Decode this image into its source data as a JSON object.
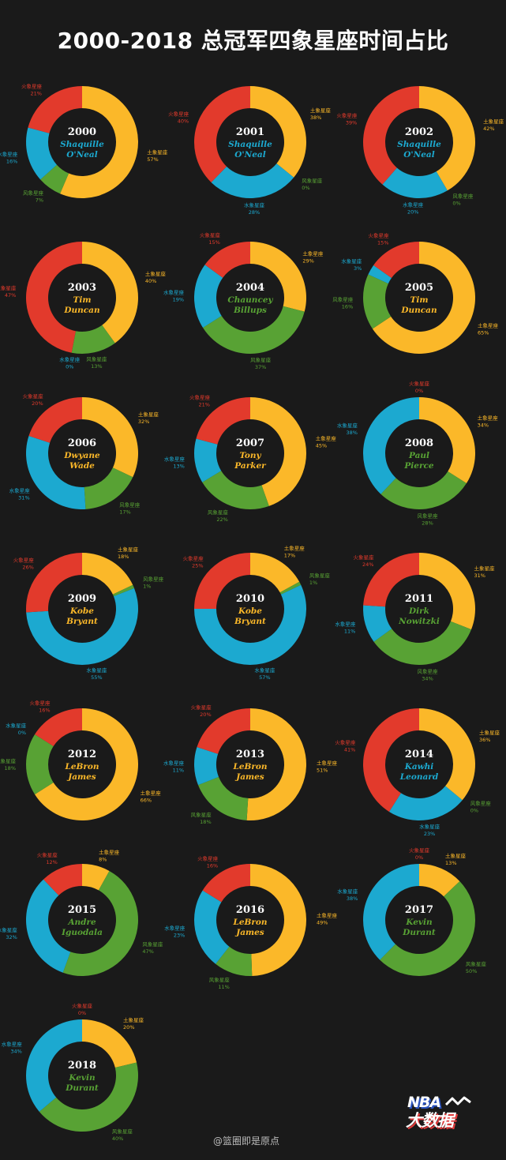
{
  "title": "2000-2018 总冠军四象星座时间占比",
  "colors": {
    "earth": "#fbb829",
    "air": "#58a234",
    "water": "#1ca9d0",
    "fire": "#e23a2c"
  },
  "element_labels": {
    "earth": "土象星座",
    "air": "风象星座",
    "water": "水象星座",
    "fire": "火象星座"
  },
  "chart_data": [
    {
      "type": "pie",
      "year": "2000",
      "player": [
        "Shaquille",
        "O'Neal"
      ],
      "name_color": "water",
      "slices": [
        {
          "element": "earth",
          "value": 57
        },
        {
          "element": "air",
          "value": 7
        },
        {
          "element": "water",
          "value": 16
        },
        {
          "element": "fire",
          "value": 21
        }
      ]
    },
    {
      "type": "pie",
      "year": "2001",
      "player": [
        "Shaquille",
        "O'Neal"
      ],
      "name_color": "water",
      "slices": [
        {
          "element": "earth",
          "value": 38
        },
        {
          "element": "air",
          "value": 0
        },
        {
          "element": "water",
          "value": 28
        },
        {
          "element": "fire",
          "value": 40
        }
      ]
    },
    {
      "type": "pie",
      "year": "2002",
      "player": [
        "Shaquille",
        "O'Neal"
      ],
      "name_color": "water",
      "slices": [
        {
          "element": "earth",
          "value": 42
        },
        {
          "element": "air",
          "value": 0
        },
        {
          "element": "water",
          "value": 20
        },
        {
          "element": "fire",
          "value": 39
        }
      ]
    },
    {
      "type": "pie",
      "year": "2003",
      "player": [
        "Tim",
        "Duncan"
      ],
      "name_color": "earth",
      "slices": [
        {
          "element": "earth",
          "value": 40
        },
        {
          "element": "air",
          "value": 13
        },
        {
          "element": "water",
          "value": 0
        },
        {
          "element": "fire",
          "value": 47
        }
      ]
    },
    {
      "type": "pie",
      "year": "2004",
      "player": [
        "Chauncey",
        "Billups"
      ],
      "name_color": "air",
      "slices": [
        {
          "element": "earth",
          "value": 29
        },
        {
          "element": "air",
          "value": 37
        },
        {
          "element": "water",
          "value": 19
        },
        {
          "element": "fire",
          "value": 15
        }
      ]
    },
    {
      "type": "pie",
      "year": "2005",
      "player": [
        "Tim",
        "Duncan"
      ],
      "name_color": "earth",
      "slices": [
        {
          "element": "earth",
          "value": 65
        },
        {
          "element": "air",
          "value": 16
        },
        {
          "element": "water",
          "value": 3
        },
        {
          "element": "fire",
          "value": 15
        }
      ]
    },
    {
      "type": "pie",
      "year": "2006",
      "player": [
        "Dwyane",
        "Wade"
      ],
      "name_color": "earth",
      "slices": [
        {
          "element": "earth",
          "value": 32
        },
        {
          "element": "air",
          "value": 17
        },
        {
          "element": "water",
          "value": 31
        },
        {
          "element": "fire",
          "value": 20
        }
      ]
    },
    {
      "type": "pie",
      "year": "2007",
      "player": [
        "Tony",
        "Parker"
      ],
      "name_color": "earth",
      "slices": [
        {
          "element": "earth",
          "value": 45
        },
        {
          "element": "air",
          "value": 22
        },
        {
          "element": "water",
          "value": 13
        },
        {
          "element": "fire",
          "value": 21
        }
      ]
    },
    {
      "type": "pie",
      "year": "2008",
      "player": [
        "Paul",
        "Pierce"
      ],
      "name_color": "air",
      "slices": [
        {
          "element": "earth",
          "value": 34
        },
        {
          "element": "air",
          "value": 28
        },
        {
          "element": "water",
          "value": 38
        },
        {
          "element": "fire",
          "value": 0
        }
      ]
    },
    {
      "type": "pie",
      "year": "2009",
      "player": [
        "Kobe",
        "Bryant"
      ],
      "name_color": "earth",
      "slices": [
        {
          "element": "earth",
          "value": 18
        },
        {
          "element": "air",
          "value": 1
        },
        {
          "element": "water",
          "value": 55
        },
        {
          "element": "fire",
          "value": 26
        }
      ]
    },
    {
      "type": "pie",
      "year": "2010",
      "player": [
        "Kobe",
        "Bryant"
      ],
      "name_color": "earth",
      "slices": [
        {
          "element": "earth",
          "value": 17
        },
        {
          "element": "air",
          "value": 1
        },
        {
          "element": "water",
          "value": 57
        },
        {
          "element": "fire",
          "value": 25
        }
      ]
    },
    {
      "type": "pie",
      "year": "2011",
      "player": [
        "Dirk",
        "Nowitzki"
      ],
      "name_color": "air",
      "slices": [
        {
          "element": "earth",
          "value": 31
        },
        {
          "element": "air",
          "value": 34
        },
        {
          "element": "water",
          "value": 11
        },
        {
          "element": "fire",
          "value": 24
        }
      ]
    },
    {
      "type": "pie",
      "year": "2012",
      "player": [
        "LeBron",
        "James"
      ],
      "name_color": "earth",
      "slices": [
        {
          "element": "earth",
          "value": 66
        },
        {
          "element": "air",
          "value": 18
        },
        {
          "element": "water",
          "value": 0
        },
        {
          "element": "fire",
          "value": 16
        }
      ]
    },
    {
      "type": "pie",
      "year": "2013",
      "player": [
        "LeBron",
        "James"
      ],
      "name_color": "earth",
      "slices": [
        {
          "element": "earth",
          "value": 51
        },
        {
          "element": "air",
          "value": 18
        },
        {
          "element": "water",
          "value": 11
        },
        {
          "element": "fire",
          "value": 20
        }
      ]
    },
    {
      "type": "pie",
      "year": "2014",
      "player": [
        "Kawhi",
        "Leonard"
      ],
      "name_color": "water",
      "slices": [
        {
          "element": "earth",
          "value": 36
        },
        {
          "element": "air",
          "value": 0
        },
        {
          "element": "water",
          "value": 23
        },
        {
          "element": "fire",
          "value": 41
        }
      ]
    },
    {
      "type": "pie",
      "year": "2015",
      "player": [
        "Andre",
        "Iguodala"
      ],
      "name_color": "air",
      "slices": [
        {
          "element": "earth",
          "value": 8
        },
        {
          "element": "air",
          "value": 47
        },
        {
          "element": "water",
          "value": 32
        },
        {
          "element": "fire",
          "value": 12
        }
      ]
    },
    {
      "type": "pie",
      "year": "2016",
      "player": [
        "LeBron",
        "James"
      ],
      "name_color": "earth",
      "slices": [
        {
          "element": "earth",
          "value": 49
        },
        {
          "element": "air",
          "value": 11
        },
        {
          "element": "water",
          "value": 23
        },
        {
          "element": "fire",
          "value": 16
        }
      ]
    },
    {
      "type": "pie",
      "year": "2017",
      "player": [
        "Kevin",
        "Durant"
      ],
      "name_color": "air",
      "slices": [
        {
          "element": "earth",
          "value": 13
        },
        {
          "element": "air",
          "value": 50
        },
        {
          "element": "water",
          "value": 38
        },
        {
          "element": "fire",
          "value": 0
        }
      ]
    },
    {
      "type": "pie",
      "year": "2018",
      "player": [
        "Kevin",
        "Durant"
      ],
      "name_color": "air",
      "slices": [
        {
          "element": "earth",
          "value": 20
        },
        {
          "element": "air",
          "value": 40
        },
        {
          "element": "water",
          "value": 34
        },
        {
          "element": "fire",
          "value": 0
        }
      ]
    }
  ],
  "logo": {
    "line1": "NBA",
    "line2": "大数据"
  },
  "watermark": "@篮圈即是原点"
}
